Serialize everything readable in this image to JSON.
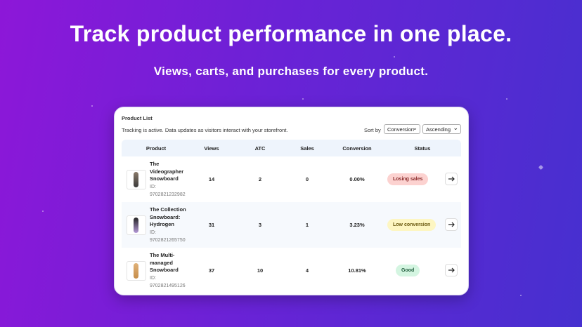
{
  "header": {
    "title": "Track product performance in one place.",
    "subtitle": "Views, carts, and purchases for every product."
  },
  "card": {
    "title": "Product List",
    "tracking": "Tracking is active. Data updates as visitors interact with your storefront.",
    "sort_label": "Sort by",
    "sort_field": "Conversion",
    "sort_order": "Ascending",
    "table": {
      "headers": [
        "Product",
        "Views",
        "ATC",
        "Sales",
        "Conversion",
        "Status"
      ],
      "rows": [
        {
          "name": "The Videographer Snowboard",
          "id_label": "ID:",
          "id": "9702821232982",
          "views": "14",
          "atc": "2",
          "sales": "0",
          "conversion": "0.00%",
          "status": "Losing sales"
        },
        {
          "name": "The Collection Snowboard: Hydrogen",
          "id_label": "ID:",
          "id": "9702821265750",
          "views": "31",
          "atc": "3",
          "sales": "1",
          "conversion": "3.23%",
          "status": "Low conversion"
        },
        {
          "name": "The Multi-managed Snowboard",
          "id_label": "ID:",
          "id": "9702821495126",
          "views": "37",
          "atc": "10",
          "sales": "4",
          "conversion": "10.81%",
          "status": "Good"
        }
      ]
    }
  }
}
